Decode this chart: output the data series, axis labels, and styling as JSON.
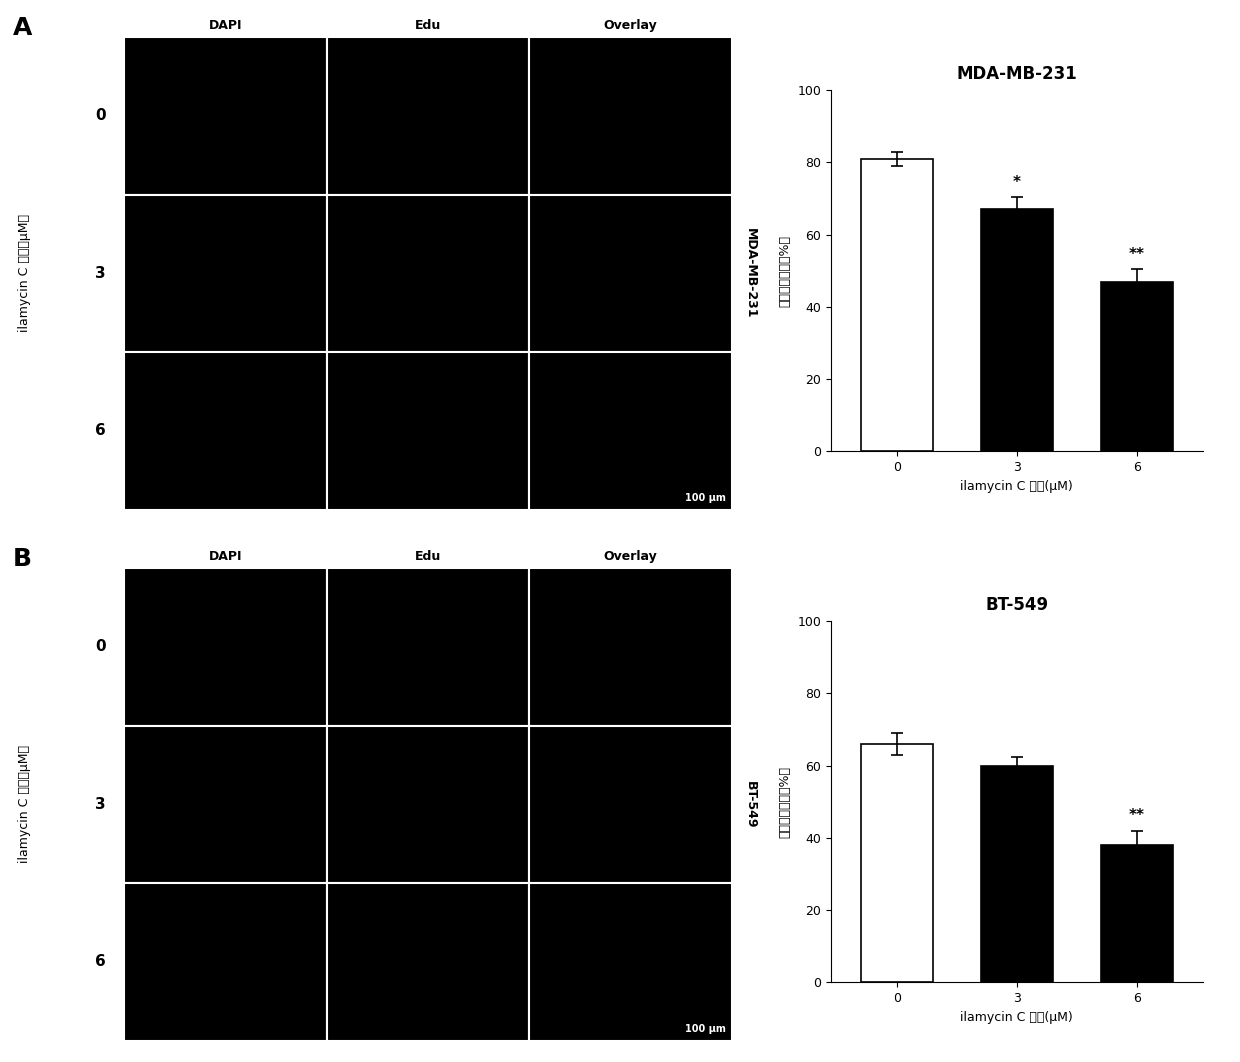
{
  "panel_A_label": "A",
  "panel_B_label": "B",
  "col_labels": [
    "DAPI",
    "Edu",
    "Overlay"
  ],
  "row_labels": [
    "0",
    "3",
    "6"
  ],
  "right_label_A": "MDA-MB-231",
  "right_label_B": "BT-549",
  "scale_bar_text": "100 μm",
  "bar_title_A": "MDA-MB-231",
  "bar_title_B": "BT-549",
  "bar_xlabel": "ilamycin C 浓度(μM)",
  "bar_ylabel": "增殖细胞比率（%）",
  "mic_ylabel": "ilamycin C 浓度（μM）",
  "bar_xticks": [
    "0",
    "3",
    "6"
  ],
  "bar_ylim": [
    0,
    100
  ],
  "bar_yticks": [
    0,
    20,
    40,
    60,
    80,
    100
  ],
  "bar_values_A": [
    81,
    67,
    47
  ],
  "bar_errors_A": [
    2.0,
    3.5,
    3.5
  ],
  "bar_colors_A": [
    "white",
    "black",
    "black"
  ],
  "bar_edge_color": "black",
  "bar_values_B": [
    66,
    60,
    38
  ],
  "bar_errors_B": [
    3.0,
    2.5,
    4.0
  ],
  "bar_colors_B": [
    "white",
    "black",
    "black"
  ],
  "significance_A": [
    "",
    "*",
    "**"
  ],
  "significance_B": [
    "",
    "",
    "**"
  ],
  "background_color": "white",
  "black_panel_color": "#000000",
  "grid_line_color": "white"
}
